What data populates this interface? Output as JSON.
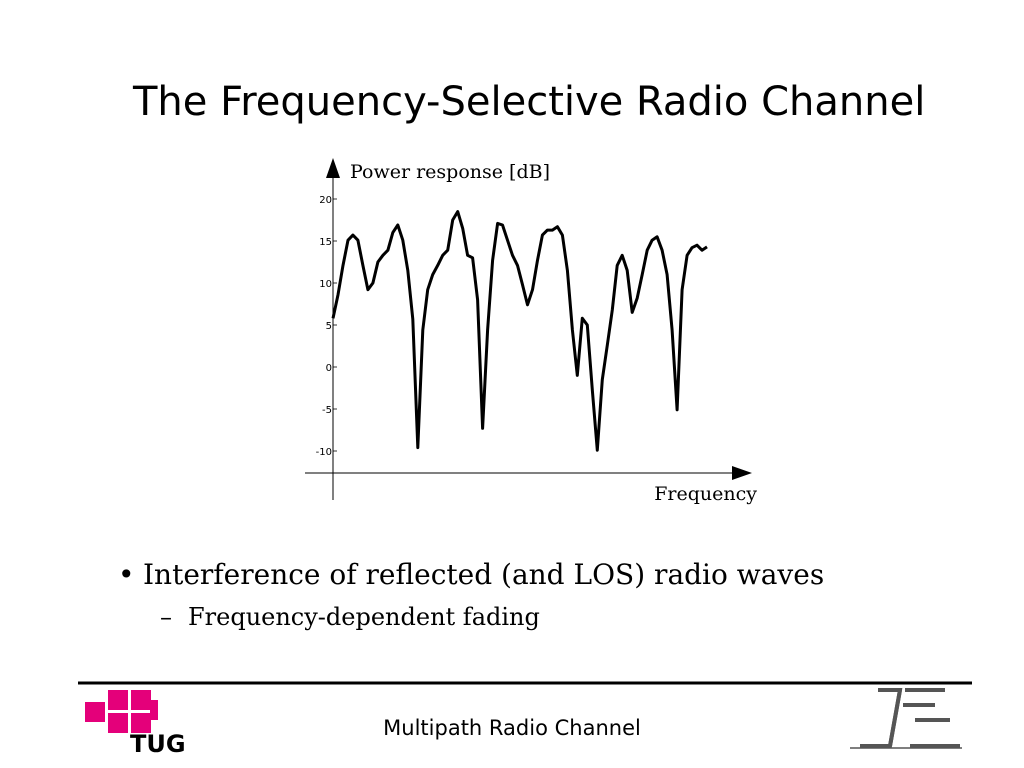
{
  "title": "The Frequency-Selective Radio Channel",
  "chart_data": {
    "type": "line",
    "ylabel": "Power response [dB]",
    "xlabel": "Frequency",
    "color": "#000000",
    "ylim": [
      -15,
      25
    ],
    "yticks": [
      -10,
      -5,
      0,
      5,
      10,
      15,
      20
    ],
    "values": [
      5.8,
      8.6,
      12.1,
      15.1,
      15.7,
      15.1,
      12.1,
      9.2,
      10,
      12.5,
      13.3,
      13.9,
      16,
      16.9,
      15.1,
      11.5,
      5.7,
      -9.6,
      4.4,
      9.2,
      11,
      12.1,
      13.3,
      13.9,
      17.5,
      18.5,
      16.5,
      13.3,
      13,
      8,
      -7.3,
      4.4,
      12.7,
      17.1,
      16.9,
      15.1,
      13.3,
      12.1,
      9.8,
      7.4,
      9.2,
      12.7,
      15.7,
      16.3,
      16.3,
      16.7,
      15.7,
      11.5,
      4.4,
      -1,
      5.8,
      5,
      -2.7,
      -9.9,
      -1.5,
      2.6,
      6.8,
      12.1,
      13.3,
      11.5,
      6.5,
      8.2,
      11,
      13.9,
      15.1,
      15.5,
      13.9,
      11,
      4.4,
      -5.1,
      9.2,
      13.3,
      14.2,
      14.5,
      13.9,
      14.3
    ]
  },
  "bullets": [
    "Interference of reflected (and LOS) radio waves"
  ],
  "sub_bullets": [
    "Frequency-dependent fading"
  ],
  "footer": {
    "text": "Multipath Radio Channel",
    "logo_text": "TUG"
  }
}
